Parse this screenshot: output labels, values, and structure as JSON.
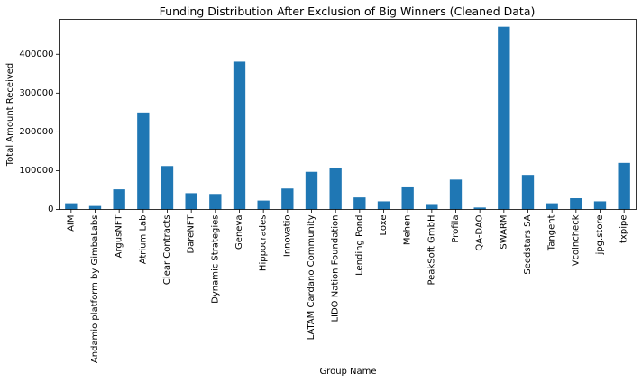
{
  "chart_data": {
    "type": "bar",
    "title": "Funding Distribution After Exclusion of Big Winners (Cleaned Data)",
    "xlabel": "Group Name",
    "ylabel": "Total Amount Received",
    "ylim": [
      0,
      490000
    ],
    "yticks": [
      0,
      100000,
      200000,
      300000,
      400000
    ],
    "bar_color": "#1f77b4",
    "grid": false,
    "categories": [
      "AIM",
      "Andamio platform by GimbaLabs",
      "ArgusNFT",
      "Atrium Lab",
      "Clear Contracts",
      "DareNFT",
      "Dynamic Strategies",
      "Geneva",
      "Hippocrades",
      "Innovatio",
      "LATAM Cardano Community",
      "LIDO Nation Foundation",
      "Lending Pond",
      "Loxe",
      "Mehen",
      "PeakSoft GmbH",
      "Profila",
      "QA-DAO",
      "SWARM",
      "Seedstars SA",
      "Tangent",
      "Vcoincheck",
      "jpg.store",
      "txpipe"
    ],
    "values": [
      16000,
      9000,
      52000,
      250000,
      112000,
      42000,
      40000,
      381000,
      23000,
      54000,
      97000,
      108000,
      31000,
      21000,
      57000,
      14000,
      77000,
      5000,
      471000,
      89000,
      16000,
      29000,
      21000,
      120000
    ]
  }
}
